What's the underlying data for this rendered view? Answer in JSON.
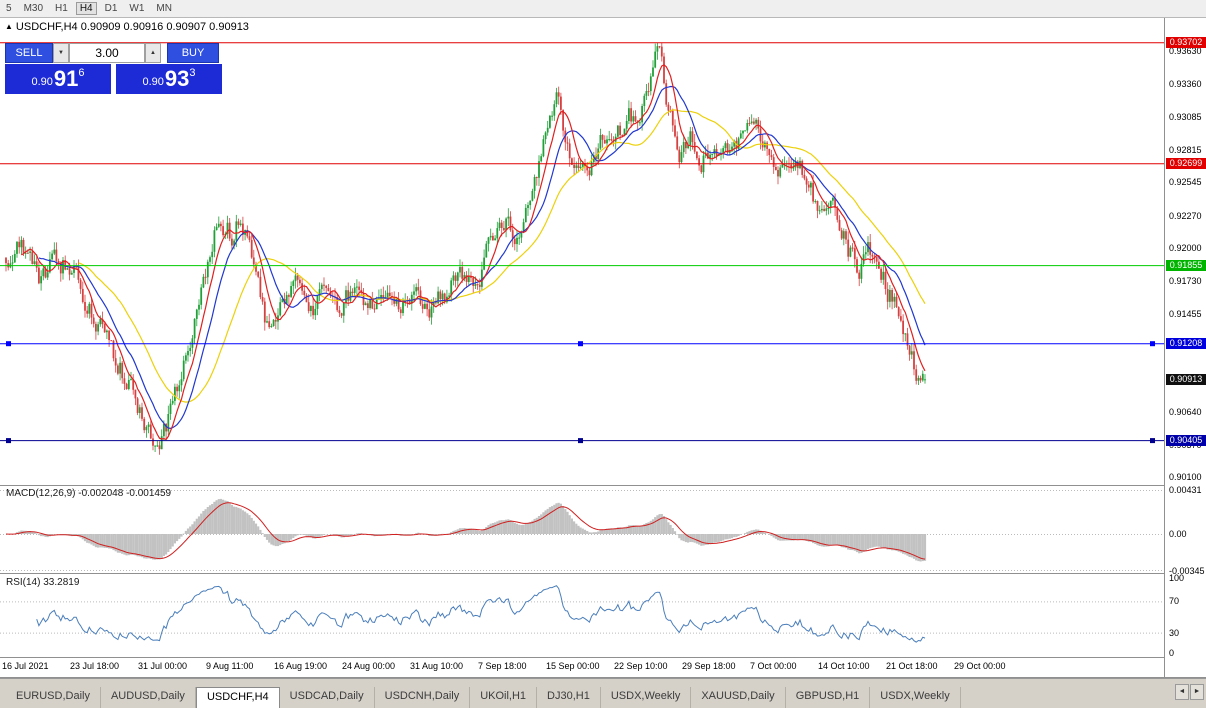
{
  "toolbar": {
    "timeframes": [
      {
        "label": "5",
        "active": false
      },
      {
        "label": "M30",
        "active": false
      },
      {
        "label": "H1",
        "active": false
      },
      {
        "label": "H4",
        "active": true
      },
      {
        "label": "D1",
        "active": false
      },
      {
        "label": "W1",
        "active": false
      },
      {
        "label": "MN",
        "active": false
      }
    ]
  },
  "chart": {
    "collapse_icon": "▲",
    "title": "USDCHF,H4 0.90909 0.90916 0.90907 0.90913"
  },
  "trade_panel": {
    "sell_label": "SELL",
    "buy_label": "BUY",
    "volume": "3.00",
    "spinner_down": "▼",
    "spinner_up": "▲",
    "bid": {
      "prefix": "0.90",
      "big": "91",
      "sup": "6"
    },
    "ask": {
      "prefix": "0.90",
      "big": "93",
      "sup": "3"
    }
  },
  "price_axis": {
    "labels": [
      "0.93630",
      "0.93360",
      "0.93085",
      "0.92815",
      "0.92545",
      "0.92270",
      "0.92000",
      "0.91730",
      "0.91455",
      "0.91185",
      "0.90910",
      "0.90640",
      "0.90370",
      "0.90100"
    ]
  },
  "levels": [
    {
      "label": "0.93702",
      "price": 0.93702,
      "color": "#e00000",
      "box": "#e00000",
      "handles": false
    },
    {
      "label": "0.92699",
      "price": 0.92699,
      "color": "#e00000",
      "box": "#e00000",
      "handles": false
    },
    {
      "label": "0.91855",
      "price": 0.91855,
      "color": "#00cc00",
      "box": "#00b400",
      "handles": false
    },
    {
      "label": "0.91208",
      "price": 0.91208,
      "color": "#0000ff",
      "box": "#0000dc",
      "handles": true
    },
    {
      "label": "0.90405",
      "price": 0.90405,
      "color": "#000090",
      "box": "#0000a8",
      "handles": true
    }
  ],
  "current_price": {
    "label": "0.90913",
    "price": 0.90913,
    "box": "#101010"
  },
  "macd": {
    "label": "MACD(12,26,9) -0.002048 -0.001459",
    "axis_labels": [
      "0.00431",
      "0.00",
      "-0.00345"
    ],
    "max": 0.00431,
    "min": -0.00345
  },
  "rsi": {
    "label": "RSI(14) 33.2819",
    "axis_labels": [
      "100",
      "70",
      "30",
      "0"
    ],
    "levels": [
      70,
      30
    ]
  },
  "dates": [
    "16 Jul 2021",
    "23 Jul 18:00",
    "31 Jul 00:00",
    "9 Aug 11:00",
    "16 Aug 19:00",
    "24 Aug 00:00",
    "31 Aug 10:00",
    "7 Sep 18:00",
    "15 Sep 00:00",
    "22 Sep 10:00",
    "29 Sep 18:00",
    "7 Oct 00:00",
    "14 Oct 10:00",
    "21 Oct 18:00",
    "29 Oct 00:00"
  ],
  "tabs": {
    "items": [
      {
        "label": "EURUSD,Daily",
        "active": false
      },
      {
        "label": "AUDUSD,Daily",
        "active": false
      },
      {
        "label": "USDCHF,H4",
        "active": true
      },
      {
        "label": "USDCAD,Daily",
        "active": false
      },
      {
        "label": "USDCNH,Daily",
        "active": false
      },
      {
        "label": "UKOil,H1",
        "active": false
      },
      {
        "label": "DJ30,H1",
        "active": false
      },
      {
        "label": "USDX,Weekly",
        "active": false
      },
      {
        "label": "XAUUSD,Daily",
        "active": false
      },
      {
        "label": "GBPUSD,H1",
        "active": false
      },
      {
        "label": "USDX,Weekly",
        "active": false
      }
    ],
    "left_arrow": "◄",
    "right_arrow": "►"
  },
  "chart_data": {
    "type": "candlestick",
    "symbol": "USDCHF",
    "timeframe": "H4",
    "last_ohlc": {
      "open": 0.90909,
      "high": 0.90916,
      "low": 0.90907,
      "close": 0.90913
    },
    "price_range": [
      0.90095,
      0.93725
    ],
    "bars": 420,
    "seed": 9,
    "path_anchors": [
      [
        0,
        0.9192
      ],
      [
        0.016,
        0.921
      ],
      [
        0.038,
        0.917
      ],
      [
        0.054,
        0.919
      ],
      [
        0.076,
        0.918
      ],
      [
        0.092,
        0.915
      ],
      [
        0.109,
        0.913
      ],
      [
        0.125,
        0.91
      ],
      [
        0.141,
        0.9075
      ],
      [
        0.158,
        0.9045
      ],
      [
        0.168,
        0.9035
      ],
      [
        0.185,
        0.908
      ],
      [
        0.201,
        0.913
      ],
      [
        0.217,
        0.918
      ],
      [
        0.232,
        0.9225
      ],
      [
        0.247,
        0.921
      ],
      [
        0.255,
        0.923
      ],
      [
        0.272,
        0.918
      ],
      [
        0.286,
        0.913
      ],
      [
        0.299,
        0.915
      ],
      [
        0.315,
        0.917
      ],
      [
        0.332,
        0.915
      ],
      [
        0.348,
        0.9162
      ],
      [
        0.364,
        0.915
      ],
      [
        0.38,
        0.9168
      ],
      [
        0.397,
        0.9155
      ],
      [
        0.413,
        0.9162
      ],
      [
        0.429,
        0.915
      ],
      [
        0.446,
        0.9165
      ],
      [
        0.462,
        0.9148
      ],
      [
        0.478,
        0.9162
      ],
      [
        0.495,
        0.918
      ],
      [
        0.511,
        0.916
      ],
      [
        0.527,
        0.9205
      ],
      [
        0.543,
        0.9225
      ],
      [
        0.554,
        0.9205
      ],
      [
        0.571,
        0.924
      ],
      [
        0.587,
        0.929
      ],
      [
        0.598,
        0.933
      ],
      [
        0.609,
        0.929
      ],
      [
        0.62,
        0.9265
      ],
      [
        0.63,
        0.926
      ],
      [
        0.647,
        0.929
      ],
      [
        0.663,
        0.9285
      ],
      [
        0.677,
        0.931
      ],
      [
        0.69,
        0.93
      ],
      [
        0.703,
        0.9345
      ],
      [
        0.71,
        0.9368
      ],
      [
        0.717,
        0.933
      ],
      [
        0.725,
        0.9305
      ],
      [
        0.734,
        0.928
      ],
      [
        0.745,
        0.929
      ],
      [
        0.755,
        0.927
      ],
      [
        0.766,
        0.9285
      ],
      [
        0.779,
        0.927
      ],
      [
        0.793,
        0.9285
      ],
      [
        0.808,
        0.931
      ],
      [
        0.821,
        0.929
      ],
      [
        0.834,
        0.928
      ],
      [
        0.848,
        0.926
      ],
      [
        0.862,
        0.9272
      ],
      [
        0.875,
        0.925
      ],
      [
        0.888,
        0.9225
      ],
      [
        0.902,
        0.9235
      ],
      [
        0.916,
        0.92
      ],
      [
        0.927,
        0.9185
      ],
      [
        0.938,
        0.9195
      ],
      [
        0.949,
        0.9185
      ],
      [
        0.96,
        0.9165
      ],
      [
        0.971,
        0.915
      ],
      [
        0.981,
        0.912
      ],
      [
        0.99,
        0.9095
      ],
      [
        1,
        0.9091
      ]
    ],
    "moving_averages": [
      {
        "period": 34,
        "color": "#ecd10a"
      },
      {
        "period": 16,
        "color": "#2038d0"
      },
      {
        "period": 8,
        "color": "#e02020"
      }
    ],
    "macd_params": [
      12,
      26,
      9
    ],
    "rsi_period": 14,
    "horizontal_levels": [
      0.93702,
      0.92699,
      0.91855,
      0.91208,
      0.90405
    ],
    "candle_up_color": "#21a038",
    "candle_down_color": "#d64040"
  }
}
